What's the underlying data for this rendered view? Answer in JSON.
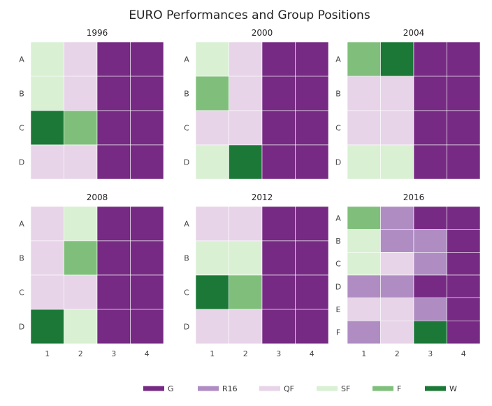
{
  "chart_data": {
    "type": "heatmap",
    "title": "EURO Performances and Group Positions",
    "xlabel": "",
    "ylabel": "",
    "x_ticks": [
      "1",
      "2",
      "3",
      "4"
    ],
    "grid": false,
    "legend": {
      "placement": "bottom-center",
      "entries": [
        {
          "code": "G",
          "label": "G",
          "color": "#762a83"
        },
        {
          "code": "R16",
          "label": "R16",
          "color": "#af8dc3"
        },
        {
          "code": "QF",
          "label": "QF",
          "color": "#e7d4e8"
        },
        {
          "code": "SF",
          "label": "SF",
          "color": "#d9f0d3"
        },
        {
          "code": "F",
          "label": "F",
          "color": "#7fbf7b"
        },
        {
          "code": "W",
          "label": "W",
          "color": "#1b7837"
        }
      ]
    },
    "panels": [
      {
        "title": "1996",
        "groups": [
          "A",
          "B",
          "C",
          "D"
        ],
        "values": [
          [
            "SF",
            "QF",
            "G",
            "G"
          ],
          [
            "SF",
            "QF",
            "G",
            "G"
          ],
          [
            "W",
            "F",
            "G",
            "G"
          ],
          [
            "QF",
            "QF",
            "G",
            "G"
          ]
        ]
      },
      {
        "title": "2000",
        "groups": [
          "A",
          "B",
          "C",
          "D"
        ],
        "values": [
          [
            "SF",
            "QF",
            "G",
            "G"
          ],
          [
            "F",
            "QF",
            "G",
            "G"
          ],
          [
            "QF",
            "QF",
            "G",
            "G"
          ],
          [
            "SF",
            "W",
            "G",
            "G"
          ]
        ]
      },
      {
        "title": "2004",
        "groups": [
          "A",
          "B",
          "C",
          "D"
        ],
        "values": [
          [
            "F",
            "W",
            "G",
            "G"
          ],
          [
            "QF",
            "QF",
            "G",
            "G"
          ],
          [
            "QF",
            "QF",
            "G",
            "G"
          ],
          [
            "SF",
            "SF",
            "G",
            "G"
          ]
        ]
      },
      {
        "title": "2008",
        "groups": [
          "A",
          "B",
          "C",
          "D"
        ],
        "values": [
          [
            "QF",
            "SF",
            "G",
            "G"
          ],
          [
            "QF",
            "F",
            "G",
            "G"
          ],
          [
            "QF",
            "QF",
            "G",
            "G"
          ],
          [
            "W",
            "SF",
            "G",
            "G"
          ]
        ]
      },
      {
        "title": "2012",
        "groups": [
          "A",
          "B",
          "C",
          "D"
        ],
        "values": [
          [
            "QF",
            "QF",
            "G",
            "G"
          ],
          [
            "SF",
            "SF",
            "G",
            "G"
          ],
          [
            "W",
            "F",
            "G",
            "G"
          ],
          [
            "QF",
            "QF",
            "G",
            "G"
          ]
        ]
      },
      {
        "title": "2016",
        "groups": [
          "A",
          "B",
          "C",
          "D",
          "E",
          "F"
        ],
        "values": [
          [
            "F",
            "R16",
            "G",
            "G"
          ],
          [
            "SF",
            "R16",
            "R16",
            "G"
          ],
          [
            "SF",
            "QF",
            "R16",
            "G"
          ],
          [
            "R16",
            "R16",
            "G",
            "G"
          ],
          [
            "QF",
            "QF",
            "R16",
            "G"
          ],
          [
            "R16",
            "QF",
            "W",
            "G"
          ]
        ]
      }
    ]
  }
}
